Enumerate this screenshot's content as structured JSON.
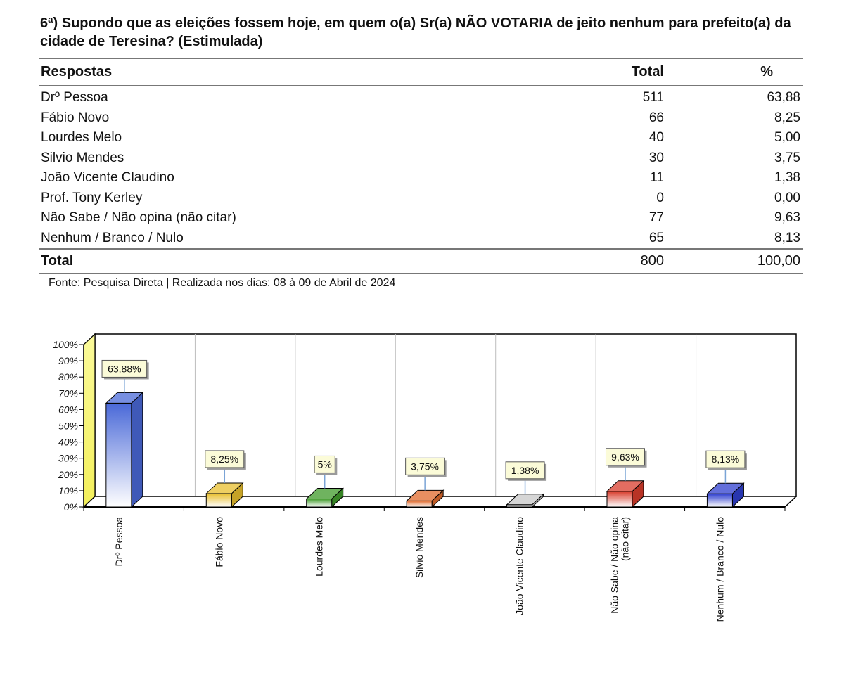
{
  "question": "6ª) Supondo que as eleições fossem hoje, em quem o(a) Sr(a) NÃO VOTARIA de jeito nenhum para prefeito(a) da cidade de Teresina? (Estimulada)",
  "table": {
    "headers": {
      "label": "Respostas",
      "total": "Total",
      "pct": "%"
    },
    "rows": [
      {
        "label": "Drº Pessoa",
        "total": "511",
        "pct": "63,88"
      },
      {
        "label": "Fábio Novo",
        "total": "66",
        "pct": "8,25"
      },
      {
        "label": "Lourdes Melo",
        "total": "40",
        "pct": "5,00"
      },
      {
        "label": "Silvio Mendes",
        "total": "30",
        "pct": "3,75"
      },
      {
        "label": "João Vicente Claudino",
        "total": "11",
        "pct": "1,38"
      },
      {
        "label": "Prof. Tony Kerley",
        "total": "0",
        "pct": "0,00"
      },
      {
        "label": "Não Sabe / Não opina (não citar)",
        "total": "77",
        "pct": "9,63"
      },
      {
        "label": "Nenhum / Branco / Nulo",
        "total": "65",
        "pct": "8,13"
      }
    ],
    "footer": {
      "label": "Total",
      "total": "800",
      "pct": "100,00"
    }
  },
  "source": "Fonte: Pesquisa Direta | Realizada nos dias: 08 à 09 de Abril de 2024",
  "chart_data": {
    "type": "bar",
    "categories": [
      [
        "Drº Pessoa"
      ],
      [
        "Fábio Novo"
      ],
      [
        "Lourdes Melo"
      ],
      [
        "Silvio Mendes"
      ],
      [
        "João Vicente Claudino"
      ],
      [
        "Não Sabe / Não opina",
        "(não citar)"
      ],
      [
        "Nenhum / Branco / Nulo"
      ]
    ],
    "values": [
      63.88,
      8.25,
      5,
      3.75,
      1.38,
      9.63,
      8.13
    ],
    "value_labels": [
      "63,88%",
      "8,25%",
      "5%",
      "3,75%",
      "1,38%",
      "9,63%",
      "8,13%"
    ],
    "colors": [
      "#4a69d8",
      "#e8bf2e",
      "#3f9a2a",
      "#e06a2c",
      "#c8c8c8",
      "#d83c2c",
      "#2f3fcf"
    ],
    "yticks": [
      "0%",
      "10%",
      "20%",
      "30%",
      "40%",
      "50%",
      "60%",
      "70%",
      "80%",
      "90%",
      "100%"
    ],
    "ylim": [
      0,
      100
    ],
    "grid": true,
    "legend": "none"
  }
}
